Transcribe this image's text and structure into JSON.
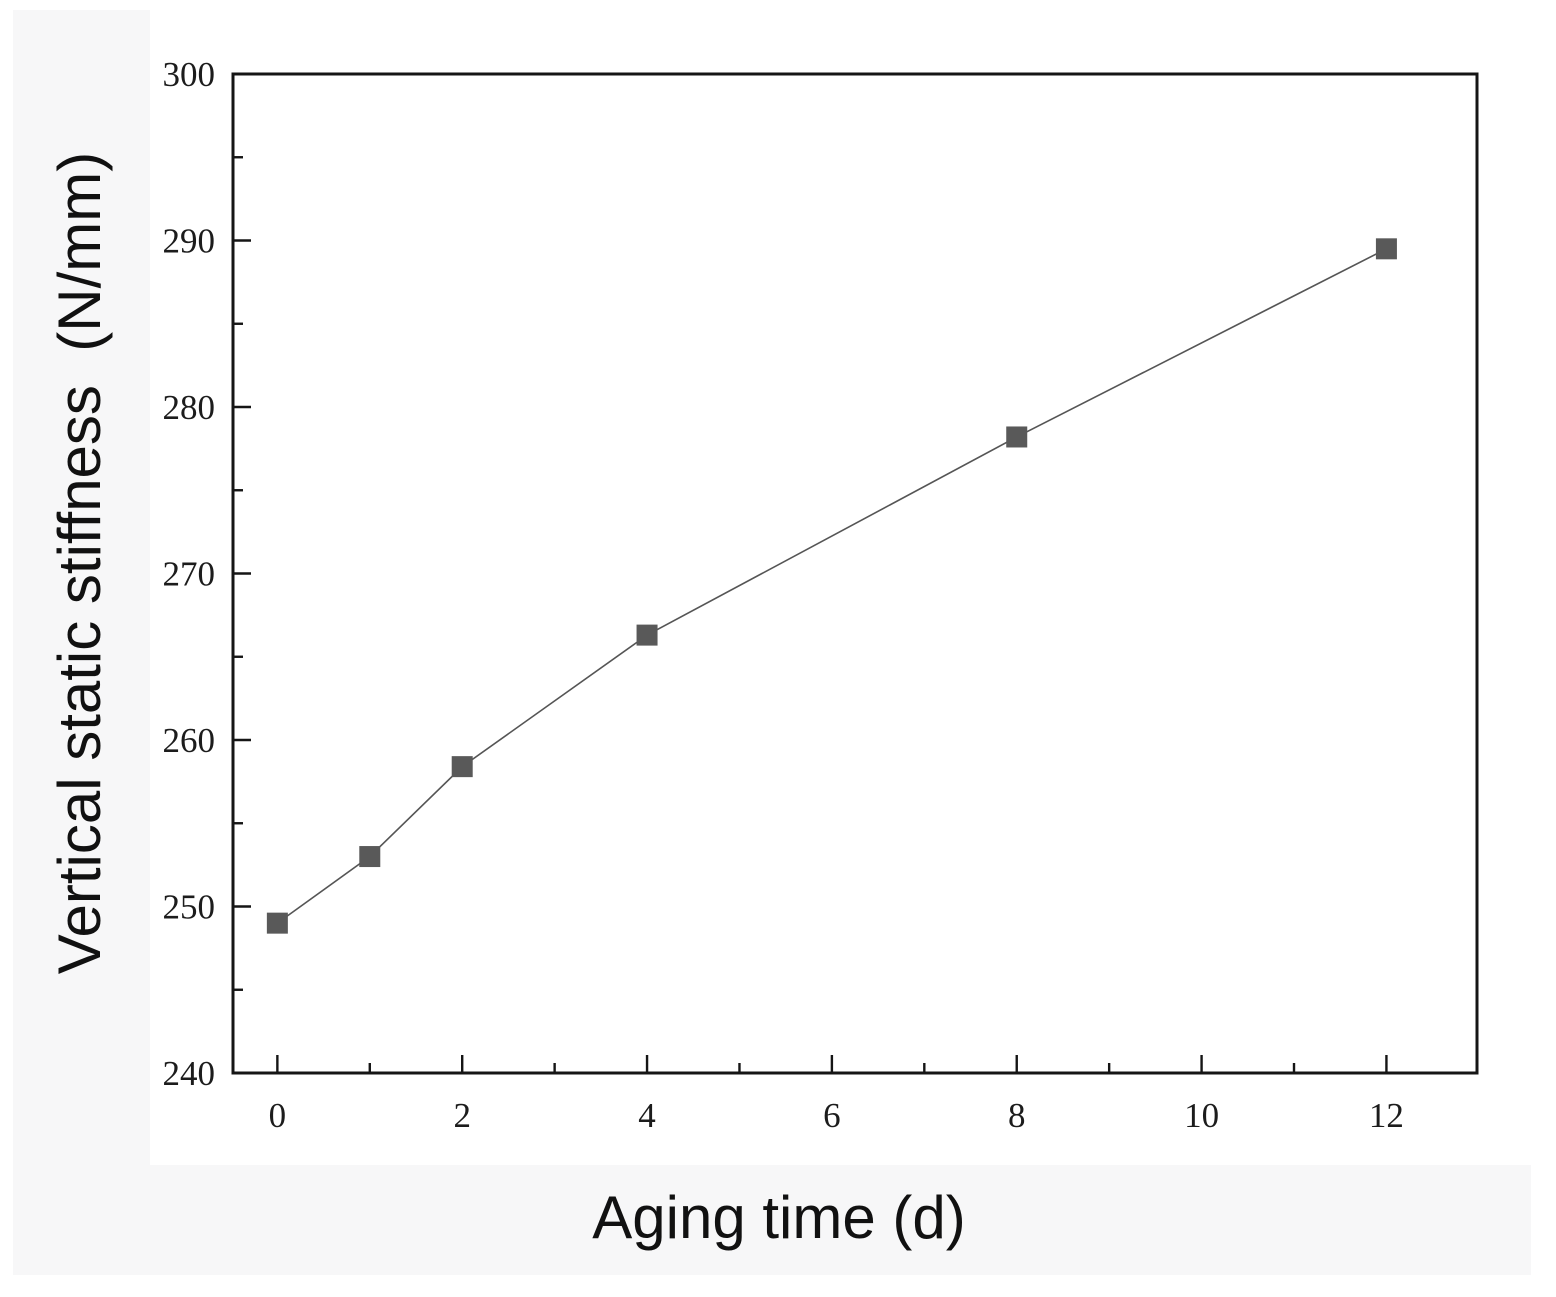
{
  "chart_data": {
    "type": "line",
    "title": "",
    "xlabel": "Aging time (d)",
    "ylabel": "Vertical static stiffness  (N/mm)",
    "x": [
      0,
      1,
      2,
      4,
      8,
      12
    ],
    "series": [
      {
        "name": "Vertical static stiffness",
        "values": [
          249.0,
          253.0,
          258.4,
          266.3,
          278.2,
          289.5
        ]
      }
    ],
    "xlim": [
      -0.48,
      12.98
    ],
    "ylim": [
      240,
      300
    ],
    "x_major_ticks": [
      0,
      2,
      4,
      6,
      8,
      10,
      12
    ],
    "x_minor_ticks": [
      1,
      3,
      5,
      7,
      9,
      11
    ],
    "y_major_ticks": [
      240,
      250,
      260,
      270,
      280,
      290,
      300
    ],
    "y_minor_ticks": [
      245,
      255,
      265,
      275,
      285,
      295
    ],
    "grid": false,
    "legend": "none",
    "marker": "square",
    "marker_size": 21,
    "colors": {
      "line": "#555555",
      "marker": "#595959",
      "axis": "#151515",
      "tick_label": "#1c1c1c",
      "axis_label": "#111111",
      "margin_panel": "#f7f7f8",
      "plot_background": "#ffffff"
    }
  }
}
